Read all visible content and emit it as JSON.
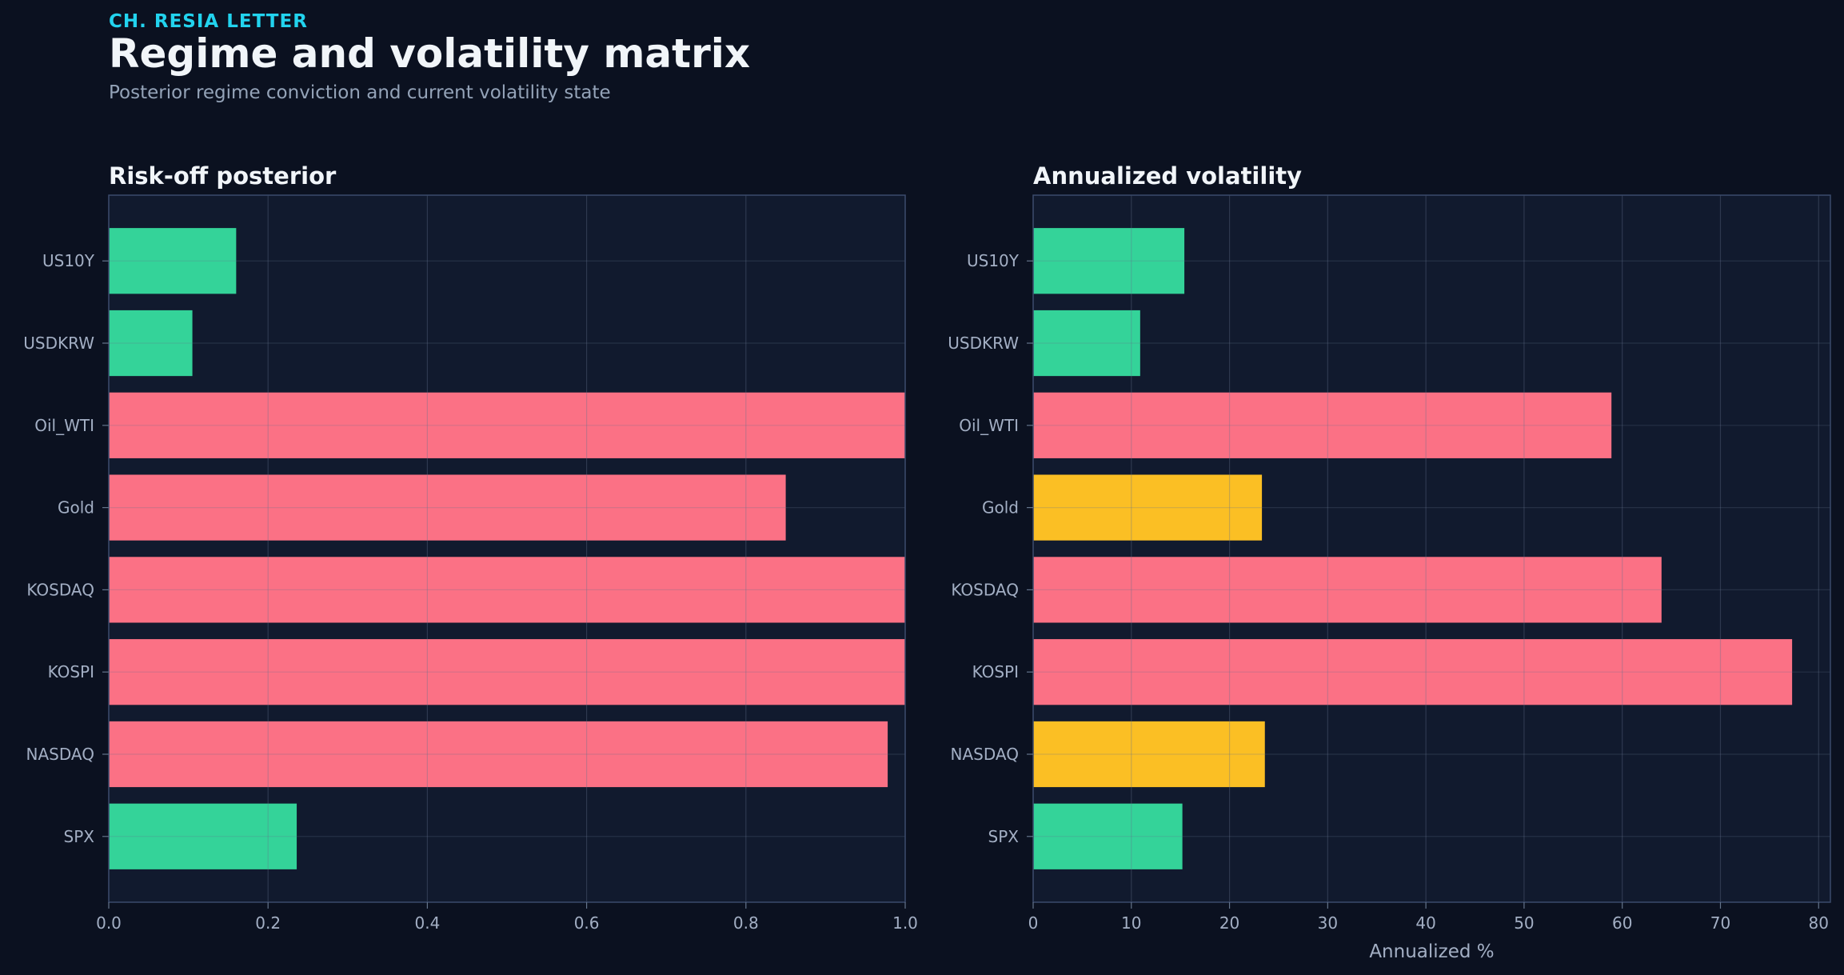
{
  "header": {
    "kicker": "CH. RESIA LETTER",
    "title": "Regime and volatility matrix",
    "subtitle": "Posterior regime conviction and current volatility state"
  },
  "colors": {
    "background": "#0b1120",
    "panel": "#111a2e",
    "risk_off": "#fb7185",
    "risk_on": "#34d399",
    "neutral": "#fbbf24",
    "accent": "#22d3ee"
  },
  "chart_data": [
    {
      "type": "bar",
      "orientation": "horizontal",
      "title": "Risk-off posterior",
      "xlabel": "",
      "ylabel": "",
      "categories": [
        "US10Y",
        "USDKRW",
        "Oil_WTI",
        "Gold",
        "KOSDAQ",
        "KOSPI",
        "NASDAQ",
        "SPX"
      ],
      "values": [
        0.16,
        0.105,
        1.0,
        0.85,
        1.0,
        1.0,
        0.978,
        0.236
      ],
      "bar_colors": [
        "#34d399",
        "#34d399",
        "#fb7185",
        "#fb7185",
        "#fb7185",
        "#fb7185",
        "#fb7185",
        "#34d399"
      ],
      "xlim": [
        0,
        1.0
      ],
      "xticks": [
        "0.0",
        "0.2",
        "0.4",
        "0.6",
        "0.8",
        "1.0"
      ],
      "xtick_values": [
        0,
        0.2,
        0.4,
        0.6,
        0.8,
        1.0
      ],
      "grid": true
    },
    {
      "type": "bar",
      "orientation": "horizontal",
      "title": "Annualized volatility",
      "xlabel": "Annualized %",
      "ylabel": "",
      "categories": [
        "US10Y",
        "USDKRW",
        "Oil_WTI",
        "Gold",
        "KOSDAQ",
        "KOSPI",
        "NASDAQ",
        "SPX"
      ],
      "values": [
        15.4,
        10.9,
        58.9,
        23.3,
        64.0,
        77.3,
        23.6,
        15.2
      ],
      "bar_colors": [
        "#34d399",
        "#34d399",
        "#fb7185",
        "#fbbf24",
        "#fb7185",
        "#fb7185",
        "#fbbf24",
        "#34d399"
      ],
      "xlim": [
        0,
        81.2
      ],
      "xticks": [
        "0",
        "10",
        "20",
        "30",
        "40",
        "50",
        "60",
        "70",
        "80"
      ],
      "xtick_values": [
        0,
        10,
        20,
        30,
        40,
        50,
        60,
        70,
        80
      ],
      "grid": true
    }
  ]
}
